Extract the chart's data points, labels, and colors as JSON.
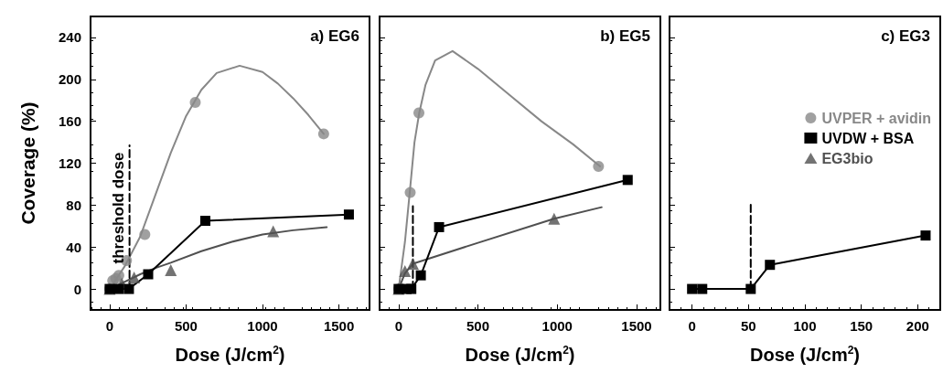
{
  "chart_data": [
    {
      "type": "line",
      "title": "a) EG6",
      "xlabel": "Dose (J/cm$^{2}$)",
      "ylabel": "Coverage (%)",
      "xlim": [
        -125,
        1700
      ],
      "xticks": [
        0,
        500,
        1000,
        1500
      ],
      "ylim": [
        -20,
        260
      ],
      "yticks": [
        0,
        40,
        80,
        120,
        160,
        200,
        240
      ],
      "annotations": [
        "threshold dose"
      ],
      "series": [
        {
          "color": "#888888",
          "marker": "none",
          "line_style": "solid",
          "x": [
            0,
            100,
            200,
            300,
            400,
            500,
            600,
            700,
            850,
            1000,
            1100,
            1200,
            1300,
            1400
          ],
          "values": [
            0,
            22,
            50,
            90,
            130,
            165,
            190,
            206,
            213,
            207,
            196,
            182,
            166,
            148
          ]
        },
        {
          "color": "#505050",
          "marker": "none",
          "line_style": "solid",
          "x": [
            0,
            100,
            200,
            300,
            400,
            600,
            800,
            1000,
            1200,
            1420
          ],
          "values": [
            0,
            7,
            14,
            20,
            25,
            36,
            45,
            52,
            56,
            59
          ]
        },
        {
          "color": "#000000",
          "line_style": "dashed",
          "x": [
            130,
            130
          ],
          "values": [
            0,
            137
          ]
        },
        {
          "type": "scatter",
          "color": "#888888",
          "marker": "circle",
          "x": [
            0,
            20,
            40,
            60,
            110,
            230,
            560,
            1400
          ],
          "values": [
            0,
            8,
            10,
            13,
            27,
            52,
            178,
            148
          ]
        },
        {
          "type": "scatter",
          "color": "#505050",
          "marker": "triangle",
          "x": [
            0,
            80,
            160,
            400,
            1070
          ],
          "values": [
            0,
            5,
            11,
            18,
            55
          ]
        },
        {
          "color": "#000000",
          "marker": "square",
          "line_style": "solid",
          "x": [
            0,
            60,
            126,
            252,
            626,
            1565
          ],
          "values": [
            0,
            0,
            0,
            14,
            65,
            71
          ]
        }
      ]
    },
    {
      "type": "line",
      "title": "b) EG5",
      "xlabel": "Dose (J/cm$^{2}$)",
      "xlim": [
        -120,
        1650
      ],
      "xticks": [
        0,
        500,
        1000,
        1500
      ],
      "ylim": [
        -20,
        260
      ],
      "yticks": [
        0,
        40,
        80,
        120,
        160,
        200,
        240
      ],
      "tick_labels": "x",
      "series": [
        {
          "color": "#888888",
          "marker": "none",
          "line_style": "solid",
          "x": [
            0,
            40,
            70,
            100,
            130,
            170,
            230,
            340,
            500,
            700,
            900,
            1100,
            1270
          ],
          "values": [
            0,
            45,
            92,
            140,
            168,
            195,
            218,
            227,
            210,
            185,
            160,
            138,
            117
          ]
        },
        {
          "color": "#505050",
          "marker": "none",
          "line_style": "solid",
          "x": [
            0,
            40,
            90,
            500,
            980,
            1280
          ],
          "values": [
            0,
            15,
            24,
            44,
            67,
            78
          ]
        },
        {
          "color": "#000000",
          "line_style": "dashed",
          "x": [
            90,
            90
          ],
          "values": [
            0,
            79
          ]
        },
        {
          "type": "scatter",
          "color": "#888888",
          "marker": "circle",
          "x": [
            0,
            73,
            128,
            1260
          ],
          "values": [
            0,
            92,
            168,
            117
          ]
        },
        {
          "type": "scatter",
          "color": "#505050",
          "marker": "triangle",
          "x": [
            0,
            40,
            90,
            980
          ],
          "values": [
            0,
            17,
            24,
            67
          ]
        },
        {
          "color": "#000000",
          "marker": "square",
          "line_style": "solid",
          "x": [
            0,
            50,
            80,
            140,
            255,
            1444
          ],
          "values": [
            0,
            0,
            0,
            13,
            59,
            104
          ]
        }
      ]
    },
    {
      "type": "line",
      "title": "c) EG3",
      "xlabel": "Dose (J/cm$^{2}$)",
      "xlim": [
        -20,
        220
      ],
      "xticks": [
        0,
        50,
        100,
        150,
        200
      ],
      "ylim": [
        -20,
        260
      ],
      "yticks": [
        0,
        40,
        80,
        120,
        160,
        200,
        240
      ],
      "tick_labels": "x",
      "legend": "right",
      "series": [
        {
          "color": "#000000",
          "line_style": "dashed",
          "x": [
            52,
            52
          ],
          "values": [
            0,
            81
          ]
        },
        {
          "name": "UVPER + avidin",
          "type": "scatter",
          "color": "#888888",
          "marker": "circle"
        },
        {
          "name": "UVDW + BSA",
          "color": "#000000",
          "marker": "square",
          "line_style": "solid",
          "x": [
            0,
            9,
            52,
            69,
            207
          ],
          "values": [
            0,
            0,
            0,
            23,
            51
          ]
        },
        {
          "name": "EG3bio",
          "type": "scatter",
          "color": "#505050",
          "marker": "triangle"
        }
      ]
    }
  ]
}
